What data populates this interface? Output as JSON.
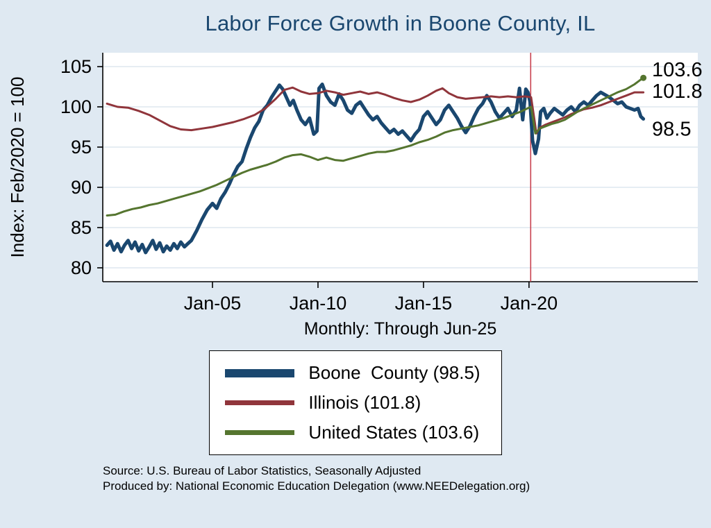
{
  "title": "Labor Force Growth in Boone  County, IL",
  "colors": {
    "background": "#dfe9f2",
    "plot_background": "#ffffff",
    "grid": "#dde7ef",
    "axis": "#000000",
    "title": "#1a476f",
    "reference_line": "#c8404e"
  },
  "footer": {
    "line1": "Source: U.S. Bureau of Labor Statistics, Seasonally Adjusted",
    "line2": "Produced by: National Economic Education Delegation (www.NEEDelegation.org)"
  },
  "chart_data": {
    "type": "line",
    "title": "Labor Force Growth in Boone  County, IL",
    "subtitle": "Monthly: Through Jun-25",
    "xlabel": "",
    "ylabel": "Index: Feb/2020 = 100",
    "xlim": [
      1999.8,
      2028.0
    ],
    "ylim": [
      80,
      105
    ],
    "y_ticks": [
      80,
      85,
      90,
      95,
      100,
      105
    ],
    "x_ticks": [
      {
        "value": 2005.0,
        "label": "Jan-05"
      },
      {
        "value": 2010.0,
        "label": "Jan-10"
      },
      {
        "value": 2015.0,
        "label": "Jan-15"
      },
      {
        "value": 2020.0,
        "label": "Jan-20"
      }
    ],
    "grid": true,
    "legend_position": "bottom",
    "reference_line": {
      "x": 2020.08,
      "color": "#c8404e"
    },
    "end_labels": [
      {
        "text": "103.6",
        "x": 2025.5,
        "value": 103.6,
        "dy": -2
      },
      {
        "text": "101.8",
        "x": 2025.5,
        "value": 101.8,
        "dy": 8
      },
      {
        "text": "98.5",
        "x": 2025.5,
        "value": 98.5,
        "dy": 24
      }
    ],
    "series": [
      {
        "id": "boone-county",
        "name": "Boone  County (98.5)",
        "color": "#1a476f",
        "width": 5,
        "last_value": 98.5,
        "points": [
          [
            2000.0,
            82.8
          ],
          [
            2000.17,
            83.3
          ],
          [
            2000.33,
            82.2
          ],
          [
            2000.5,
            83.0
          ],
          [
            2000.67,
            82.0
          ],
          [
            2000.83,
            82.8
          ],
          [
            2001.0,
            83.4
          ],
          [
            2001.17,
            82.4
          ],
          [
            2001.33,
            83.2
          ],
          [
            2001.5,
            82.1
          ],
          [
            2001.67,
            82.9
          ],
          [
            2001.83,
            81.9
          ],
          [
            2002.0,
            82.6
          ],
          [
            2002.17,
            83.4
          ],
          [
            2002.33,
            82.3
          ],
          [
            2002.5,
            83.1
          ],
          [
            2002.67,
            82.0
          ],
          [
            2002.83,
            82.7
          ],
          [
            2003.0,
            82.2
          ],
          [
            2003.17,
            83.0
          ],
          [
            2003.33,
            82.4
          ],
          [
            2003.5,
            83.2
          ],
          [
            2003.67,
            82.6
          ],
          [
            2003.83,
            83.0
          ],
          [
            2004.0,
            83.4
          ],
          [
            2004.25,
            84.6
          ],
          [
            2004.5,
            86.0
          ],
          [
            2004.75,
            87.2
          ],
          [
            2005.0,
            88.0
          ],
          [
            2005.2,
            87.4
          ],
          [
            2005.4,
            88.6
          ],
          [
            2005.6,
            89.4
          ],
          [
            2005.8,
            90.4
          ],
          [
            2006.0,
            91.6
          ],
          [
            2006.2,
            92.6
          ],
          [
            2006.4,
            93.2
          ],
          [
            2006.6,
            94.8
          ],
          [
            2006.8,
            96.2
          ],
          [
            2007.0,
            97.4
          ],
          [
            2007.2,
            98.2
          ],
          [
            2007.4,
            99.6
          ],
          [
            2007.6,
            100.2
          ],
          [
            2007.8,
            101.2
          ],
          [
            2008.0,
            102.0
          ],
          [
            2008.17,
            102.7
          ],
          [
            2008.33,
            102.2
          ],
          [
            2008.5,
            101.2
          ],
          [
            2008.67,
            100.2
          ],
          [
            2008.83,
            100.8
          ],
          [
            2009.0,
            99.6
          ],
          [
            2009.2,
            98.4
          ],
          [
            2009.4,
            97.8
          ],
          [
            2009.6,
            98.6
          ],
          [
            2009.8,
            96.6
          ],
          [
            2009.95,
            97.0
          ],
          [
            2010.05,
            102.3
          ],
          [
            2010.2,
            102.8
          ],
          [
            2010.4,
            101.4
          ],
          [
            2010.6,
            100.6
          ],
          [
            2010.8,
            100.2
          ],
          [
            2011.0,
            101.6
          ],
          [
            2011.2,
            100.8
          ],
          [
            2011.4,
            99.6
          ],
          [
            2011.6,
            99.2
          ],
          [
            2011.8,
            100.2
          ],
          [
            2012.0,
            100.6
          ],
          [
            2012.2,
            99.8
          ],
          [
            2012.4,
            99.0
          ],
          [
            2012.6,
            98.4
          ],
          [
            2012.8,
            98.8
          ],
          [
            2013.0,
            98.0
          ],
          [
            2013.2,
            97.4
          ],
          [
            2013.4,
            96.8
          ],
          [
            2013.6,
            97.2
          ],
          [
            2013.8,
            96.6
          ],
          [
            2014.0,
            97.0
          ],
          [
            2014.2,
            96.4
          ],
          [
            2014.4,
            95.8
          ],
          [
            2014.6,
            96.6
          ],
          [
            2014.8,
            97.2
          ],
          [
            2015.0,
            98.8
          ],
          [
            2015.2,
            99.4
          ],
          [
            2015.4,
            98.6
          ],
          [
            2015.6,
            97.8
          ],
          [
            2015.8,
            98.4
          ],
          [
            2016.0,
            99.6
          ],
          [
            2016.2,
            100.2
          ],
          [
            2016.4,
            99.4
          ],
          [
            2016.6,
            98.6
          ],
          [
            2016.8,
            97.6
          ],
          [
            2017.0,
            96.8
          ],
          [
            2017.2,
            97.6
          ],
          [
            2017.4,
            98.8
          ],
          [
            2017.6,
            99.8
          ],
          [
            2017.8,
            100.4
          ],
          [
            2018.0,
            101.4
          ],
          [
            2018.2,
            100.6
          ],
          [
            2018.4,
            99.4
          ],
          [
            2018.6,
            98.6
          ],
          [
            2018.8,
            99.2
          ],
          [
            2019.0,
            99.8
          ],
          [
            2019.2,
            98.8
          ],
          [
            2019.4,
            99.6
          ],
          [
            2019.55,
            102.3
          ],
          [
            2019.7,
            98.4
          ],
          [
            2019.85,
            102.2
          ],
          [
            2019.95,
            101.8
          ],
          [
            2020.05,
            100.6
          ],
          [
            2020.17,
            95.8
          ],
          [
            2020.3,
            94.2
          ],
          [
            2020.45,
            96.0
          ],
          [
            2020.55,
            99.4
          ],
          [
            2020.7,
            99.8
          ],
          [
            2020.85,
            98.6
          ],
          [
            2021.0,
            99.2
          ],
          [
            2021.2,
            99.8
          ],
          [
            2021.4,
            99.4
          ],
          [
            2021.6,
            99.0
          ],
          [
            2021.8,
            99.6
          ],
          [
            2022.0,
            100.0
          ],
          [
            2022.2,
            99.4
          ],
          [
            2022.4,
            100.2
          ],
          [
            2022.6,
            100.6
          ],
          [
            2022.8,
            100.2
          ],
          [
            2023.0,
            100.8
          ],
          [
            2023.2,
            101.4
          ],
          [
            2023.4,
            101.8
          ],
          [
            2023.6,
            101.5
          ],
          [
            2023.8,
            101.2
          ],
          [
            2024.0,
            100.8
          ],
          [
            2024.2,
            100.4
          ],
          [
            2024.4,
            100.6
          ],
          [
            2024.6,
            100.0
          ],
          [
            2024.8,
            99.8
          ],
          [
            2025.0,
            99.6
          ],
          [
            2025.17,
            99.8
          ],
          [
            2025.3,
            98.8
          ],
          [
            2025.42,
            98.5
          ]
        ]
      },
      {
        "id": "illinois",
        "name": "Illinois (101.8)",
        "color": "#90353b",
        "width": 3,
        "last_value": 101.8,
        "points": [
          [
            2000.0,
            100.4
          ],
          [
            2000.5,
            100.0
          ],
          [
            2001.0,
            99.9
          ],
          [
            2001.5,
            99.5
          ],
          [
            2002.0,
            99.0
          ],
          [
            2002.5,
            98.3
          ],
          [
            2003.0,
            97.6
          ],
          [
            2003.5,
            97.2
          ],
          [
            2004.0,
            97.1
          ],
          [
            2004.5,
            97.3
          ],
          [
            2005.0,
            97.5
          ],
          [
            2005.5,
            97.8
          ],
          [
            2006.0,
            98.1
          ],
          [
            2006.5,
            98.5
          ],
          [
            2007.0,
            99.0
          ],
          [
            2007.5,
            99.8
          ],
          [
            2008.0,
            101.0
          ],
          [
            2008.4,
            102.1
          ],
          [
            2008.8,
            102.4
          ],
          [
            2009.2,
            101.9
          ],
          [
            2009.6,
            101.6
          ],
          [
            2010.0,
            101.7
          ],
          [
            2010.4,
            102.0
          ],
          [
            2010.8,
            101.8
          ],
          [
            2011.2,
            101.5
          ],
          [
            2011.6,
            101.7
          ],
          [
            2012.0,
            101.9
          ],
          [
            2012.4,
            101.6
          ],
          [
            2012.8,
            101.8
          ],
          [
            2013.2,
            101.5
          ],
          [
            2013.6,
            101.1
          ],
          [
            2014.0,
            100.8
          ],
          [
            2014.4,
            100.6
          ],
          [
            2014.8,
            100.9
          ],
          [
            2015.2,
            101.4
          ],
          [
            2015.6,
            102.0
          ],
          [
            2015.9,
            102.3
          ],
          [
            2016.2,
            101.7
          ],
          [
            2016.6,
            101.2
          ],
          [
            2017.0,
            101.0
          ],
          [
            2017.4,
            101.1
          ],
          [
            2017.8,
            101.2
          ],
          [
            2018.2,
            101.3
          ],
          [
            2018.6,
            101.2
          ],
          [
            2019.0,
            101.3
          ],
          [
            2019.4,
            101.2
          ],
          [
            2019.8,
            101.3
          ],
          [
            2020.1,
            101.2
          ],
          [
            2020.25,
            98.5
          ],
          [
            2020.35,
            96.7
          ],
          [
            2020.5,
            97.4
          ],
          [
            2020.8,
            97.8
          ],
          [
            2021.1,
            98.1
          ],
          [
            2021.4,
            98.4
          ],
          [
            2021.7,
            98.7
          ],
          [
            2022.0,
            99.1
          ],
          [
            2022.3,
            99.4
          ],
          [
            2022.6,
            99.7
          ],
          [
            2023.0,
            99.9
          ],
          [
            2023.4,
            100.2
          ],
          [
            2023.8,
            100.6
          ],
          [
            2024.2,
            101.0
          ],
          [
            2024.6,
            101.4
          ],
          [
            2025.0,
            101.8
          ],
          [
            2025.42,
            101.8
          ]
        ]
      },
      {
        "id": "united-states",
        "name": "United States (103.6)",
        "color": "#55752f",
        "width": 3,
        "last_value": 103.6,
        "points": [
          [
            2000.0,
            86.5
          ],
          [
            2000.4,
            86.6
          ],
          [
            2000.8,
            87.0
          ],
          [
            2001.2,
            87.3
          ],
          [
            2001.6,
            87.5
          ],
          [
            2002.0,
            87.8
          ],
          [
            2002.4,
            88.0
          ],
          [
            2002.8,
            88.3
          ],
          [
            2003.2,
            88.6
          ],
          [
            2003.6,
            88.9
          ],
          [
            2004.0,
            89.2
          ],
          [
            2004.4,
            89.5
          ],
          [
            2004.8,
            89.9
          ],
          [
            2005.2,
            90.3
          ],
          [
            2005.6,
            90.8
          ],
          [
            2006.0,
            91.3
          ],
          [
            2006.4,
            91.8
          ],
          [
            2006.8,
            92.2
          ],
          [
            2007.2,
            92.5
          ],
          [
            2007.6,
            92.8
          ],
          [
            2008.0,
            93.2
          ],
          [
            2008.4,
            93.7
          ],
          [
            2008.8,
            94.0
          ],
          [
            2009.2,
            94.1
          ],
          [
            2009.6,
            93.8
          ],
          [
            2010.0,
            93.4
          ],
          [
            2010.4,
            93.7
          ],
          [
            2010.8,
            93.4
          ],
          [
            2011.2,
            93.3
          ],
          [
            2011.6,
            93.6
          ],
          [
            2012.0,
            93.9
          ],
          [
            2012.4,
            94.2
          ],
          [
            2012.8,
            94.4
          ],
          [
            2013.2,
            94.4
          ],
          [
            2013.6,
            94.6
          ],
          [
            2014.0,
            94.9
          ],
          [
            2014.4,
            95.2
          ],
          [
            2014.8,
            95.6
          ],
          [
            2015.2,
            95.9
          ],
          [
            2015.6,
            96.3
          ],
          [
            2016.0,
            96.8
          ],
          [
            2016.4,
            97.1
          ],
          [
            2016.8,
            97.3
          ],
          [
            2017.2,
            97.5
          ],
          [
            2017.6,
            97.7
          ],
          [
            2018.0,
            98.0
          ],
          [
            2018.4,
            98.3
          ],
          [
            2018.8,
            98.6
          ],
          [
            2019.2,
            99.0
          ],
          [
            2019.6,
            99.4
          ],
          [
            2020.0,
            99.9
          ],
          [
            2020.1,
            100.0
          ],
          [
            2020.3,
            96.7
          ],
          [
            2020.5,
            97.3
          ],
          [
            2020.8,
            97.6
          ],
          [
            2021.1,
            97.9
          ],
          [
            2021.4,
            98.1
          ],
          [
            2021.7,
            98.4
          ],
          [
            2022.0,
            98.9
          ],
          [
            2022.3,
            99.4
          ],
          [
            2022.6,
            99.8
          ],
          [
            2023.0,
            100.3
          ],
          [
            2023.4,
            100.8
          ],
          [
            2023.8,
            101.3
          ],
          [
            2024.2,
            101.8
          ],
          [
            2024.6,
            102.2
          ],
          [
            2025.0,
            102.8
          ],
          [
            2025.2,
            103.2
          ],
          [
            2025.35,
            103.5
          ],
          [
            2025.42,
            103.6
          ]
        ]
      }
    ]
  }
}
